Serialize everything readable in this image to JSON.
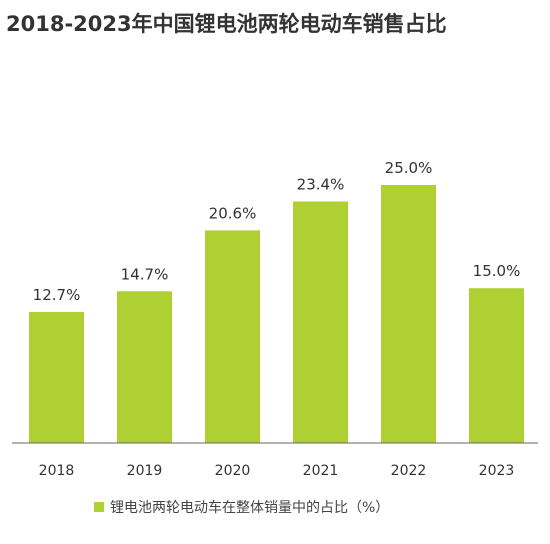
{
  "chart_data": {
    "type": "bar",
    "title": "2018-2023年中国锂电池两轮电动车销售占比",
    "categories": [
      "2018",
      "2019",
      "2020",
      "2021",
      "2022",
      "2023"
    ],
    "series": [
      {
        "name": "锂电池两轮电动车在整体销量中的占比（%）",
        "values": [
          12.7,
          14.7,
          20.6,
          23.4,
          25.0,
          15.0
        ],
        "labels": [
          "12.7%",
          "14.7%",
          "20.6%",
          "23.4%",
          "25.0%",
          "15.0%"
        ]
      }
    ],
    "ylim": [
      0,
      25.0
    ],
    "grid": false,
    "legend_position": "bottom-center",
    "colors": {
      "bar": "#aed033",
      "axis": "#666666",
      "text": "#333333"
    }
  }
}
